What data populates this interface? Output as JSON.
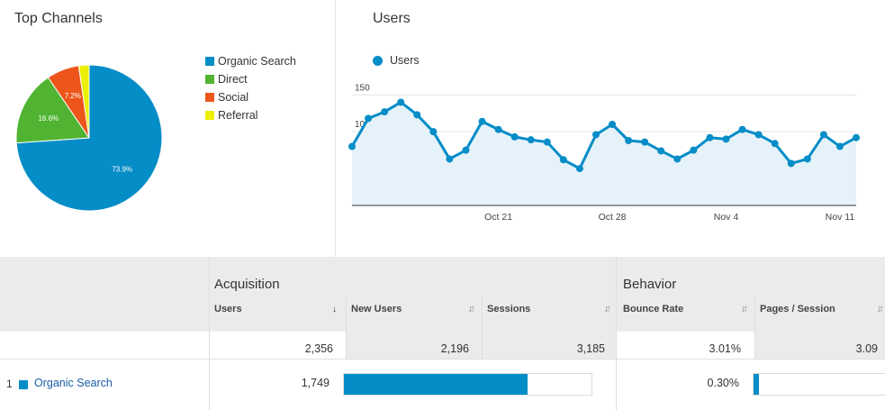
{
  "top_channels": {
    "title": "Top Channels",
    "legend": [
      {
        "label": "Organic Search",
        "color": "#058dc7"
      },
      {
        "label": "Direct",
        "color": "#50b432"
      },
      {
        "label": "Social",
        "color": "#ed561b"
      },
      {
        "label": "Referral",
        "color": "#edef00"
      }
    ]
  },
  "users_chart": {
    "title": "Users",
    "series_label": "Users"
  },
  "chart_data": [
    {
      "type": "pie",
      "title": "Top Channels",
      "slices": [
        {
          "label": "Organic Search",
          "value": 73.9,
          "color": "#058dc7",
          "text": "73.9%"
        },
        {
          "label": "Direct",
          "value": 16.6,
          "color": "#50b432",
          "text": "16.6%"
        },
        {
          "label": "Social",
          "value": 7.2,
          "color": "#ed561b",
          "text": "7.2%"
        },
        {
          "label": "Referral",
          "value": 2.3,
          "color": "#edef00",
          "text": ""
        }
      ]
    },
    {
      "type": "area",
      "title": "Users",
      "series": [
        {
          "name": "Users",
          "values": [
            80,
            118,
            127,
            140,
            123,
            100,
            63,
            75,
            114,
            103,
            93,
            89,
            86,
            62,
            50,
            96,
            110,
            88,
            86,
            74,
            63,
            75,
            92,
            90,
            103,
            96,
            84,
            57,
            63,
            96,
            80,
            92
          ]
        }
      ],
      "x_tick_labels": [
        {
          "index": 9,
          "label": "Oct 21"
        },
        {
          "index": 16,
          "label": "Oct 28"
        },
        {
          "index": 23,
          "label": "Nov 4"
        },
        {
          "index": 30,
          "label": "Nov 11"
        }
      ],
      "y_ticks": [
        50,
        100,
        150
      ],
      "ylim": [
        0,
        165
      ],
      "color": "#058dc7"
    }
  ],
  "table": {
    "acquisition_label": "Acquisition",
    "behavior_label": "Behavior",
    "columns": {
      "users": "Users",
      "new_users": "New Users",
      "sessions": "Sessions",
      "bounce_rate": "Bounce Rate",
      "pages_session": "Pages / Session"
    },
    "totals": {
      "users": "2,356",
      "new_users": "2,196",
      "sessions": "3,185",
      "bounce_rate": "3.01%",
      "pages_session": "3.09"
    },
    "rows": [
      {
        "index": "1",
        "channel": "Organic Search",
        "users": "1,749",
        "users_bar_fraction": 0.74,
        "bounce_rate": "0.30%",
        "bounce_bar_fraction": 0.04
      }
    ]
  }
}
